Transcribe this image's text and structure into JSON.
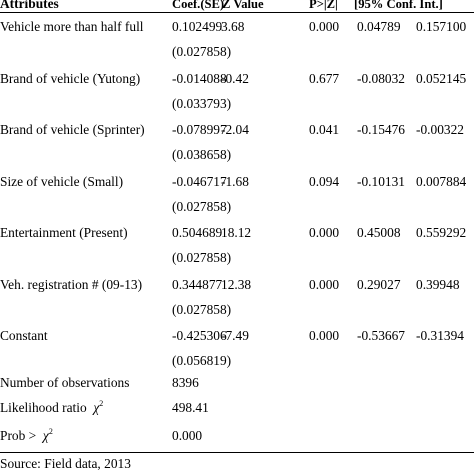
{
  "table": {
    "headers": [
      "Attributes",
      "Coef.(SE)",
      "Z Value",
      "P>|Z|",
      "[95% Conf. Int.]"
    ],
    "rows": [
      {
        "attribute": "Vehicle more than half full",
        "coef": "0.102499",
        "se": "(0.027858)",
        "z": "3.68",
        "p": "0.000",
        "ci_low": "0.04789",
        "ci_high": "0.157100"
      },
      {
        "attribute": "Brand of vehicle (Yutong)",
        "coef": "-0.014088",
        "se": "(0.033793)",
        "z": "-0.42",
        "p": "0.677",
        "ci_low": "-0.08032",
        "ci_high": "0.052145"
      },
      {
        "attribute": "Brand of vehicle (Sprinter)",
        "coef": "-0.078997",
        "se": "(0.038658)",
        "z": "-2.04",
        "p": "0.041",
        "ci_low": "-0.15476",
        "ci_high": "-0.00322"
      },
      {
        "attribute": "Size of vehicle (Small)",
        "coef": "-0.046717",
        "se": "(0.027858)",
        "z": "-1.68",
        "p": "0.094",
        "ci_low": "-0.10131",
        "ci_high": "0.007884"
      },
      {
        "attribute": "Entertainment (Present)",
        "coef": "0.504689",
        "se": "(0.027858)",
        "z": "18.12",
        "p": "0.000",
        "ci_low": "0.45008",
        "ci_high": "0.559292"
      },
      {
        "attribute": "Veh. registration # (09-13)",
        "coef": "0.344877",
        "se": "(0.027858)",
        "z": "12.38",
        "p": "0.000",
        "ci_low": "0.29027",
        "ci_high": "0.39948"
      },
      {
        "attribute": "Constant",
        "coef": "-0.425306",
        "se": "(0.056819)",
        "z": "-7.49",
        "p": "0.000",
        "ci_low": "-0.53667",
        "ci_high": "-0.31394"
      }
    ],
    "stats": [
      {
        "label": "Number of observations",
        "value": "8396"
      },
      {
        "label": "Likelihood ratio",
        "symbol": "χ",
        "exponent": "2",
        "value": "498.41"
      },
      {
        "label": "Prob >",
        "symbol": "χ",
        "exponent": "2",
        "value": "0.000"
      }
    ]
  },
  "footnote": "Source: Field data, 2013"
}
